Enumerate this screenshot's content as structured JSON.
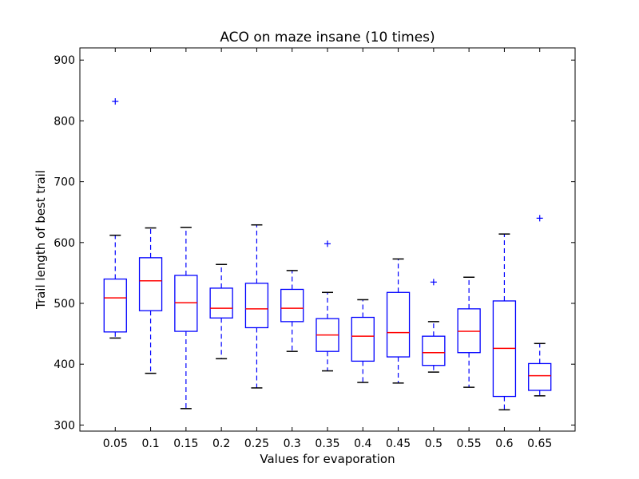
{
  "chart_data": {
    "type": "box",
    "title": "ACO on maze insane (10 times)",
    "xlabel": "Values for evaporation",
    "ylabel": "Trail length of best trail",
    "categories": [
      "0.05",
      "0.1",
      "0.15",
      "0.2",
      "0.25",
      "0.3",
      "0.35",
      "0.4",
      "0.45",
      "0.5",
      "0.55",
      "0.6",
      "0.65"
    ],
    "ylim": [
      290,
      920
    ],
    "yticks": [
      300,
      400,
      500,
      600,
      700,
      800,
      900
    ],
    "grid": false,
    "colors": {
      "box": "#0000ff",
      "median": "#ff0000",
      "whisker_cap": "#000000",
      "outlier": "#0000ff"
    },
    "boxes": [
      {
        "whisker_low": 443,
        "q1": 453,
        "median": 509,
        "q3": 540,
        "whisker_high": 612,
        "outliers": [
          832
        ]
      },
      {
        "whisker_low": 385,
        "q1": 488,
        "median": 537,
        "q3": 575,
        "whisker_high": 624,
        "outliers": []
      },
      {
        "whisker_low": 327,
        "q1": 454,
        "median": 501,
        "q3": 546,
        "whisker_high": 625,
        "outliers": []
      },
      {
        "whisker_low": 409,
        "q1": 476,
        "median": 492,
        "q3": 525,
        "whisker_high": 564,
        "outliers": []
      },
      {
        "whisker_low": 361,
        "q1": 460,
        "median": 491,
        "q3": 533,
        "whisker_high": 629,
        "outliers": []
      },
      {
        "whisker_low": 421,
        "q1": 470,
        "median": 492,
        "q3": 523,
        "whisker_high": 554,
        "outliers": []
      },
      {
        "whisker_low": 389,
        "q1": 421,
        "median": 448,
        "q3": 475,
        "whisker_high": 518,
        "outliers": [
          598
        ]
      },
      {
        "whisker_low": 370,
        "q1": 405,
        "median": 446,
        "q3": 477,
        "whisker_high": 506,
        "outliers": []
      },
      {
        "whisker_low": 369,
        "q1": 412,
        "median": 452,
        "q3": 518,
        "whisker_high": 573,
        "outliers": []
      },
      {
        "whisker_low": 387,
        "q1": 398,
        "median": 419,
        "q3": 446,
        "whisker_high": 470,
        "outliers": [
          535
        ]
      },
      {
        "whisker_low": 362,
        "q1": 419,
        "median": 454,
        "q3": 491,
        "whisker_high": 543,
        "outliers": []
      },
      {
        "whisker_low": 325,
        "q1": 347,
        "median": 426,
        "q3": 504,
        "whisker_high": 614,
        "outliers": []
      },
      {
        "whisker_low": 348,
        "q1": 357,
        "median": 381,
        "q3": 401,
        "whisker_high": 434,
        "outliers": [
          640
        ]
      }
    ]
  }
}
